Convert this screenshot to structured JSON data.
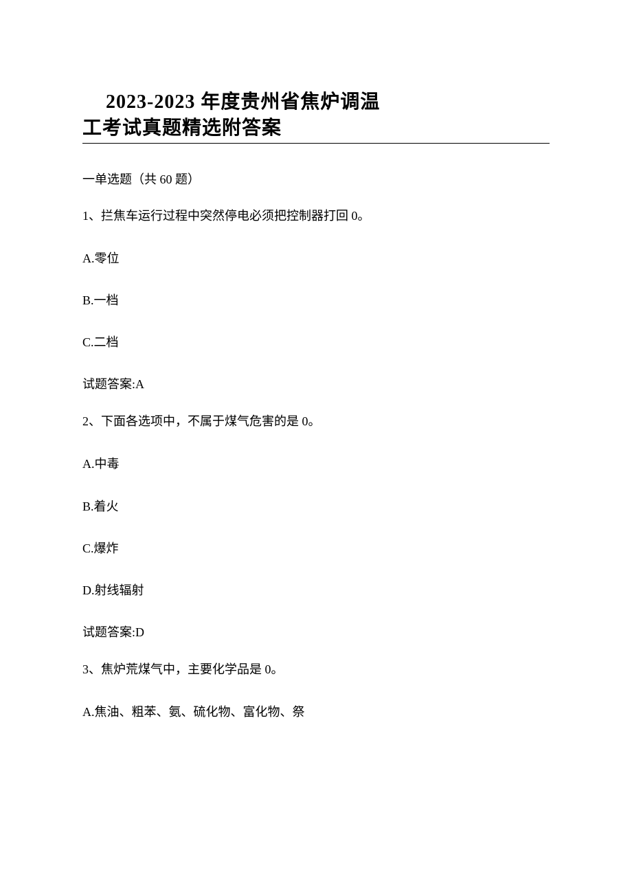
{
  "title": {
    "line1": "2023-2023 年度贵州省焦炉调温",
    "line2": "工考试真题精选附答案"
  },
  "section_header": "一单选题（共 60 题）",
  "questions": [
    {
      "stem": "1、拦焦车运行过程中突然停电必须把控制器打回 0。",
      "options": [
        "A.零位",
        "B.一档",
        "C.二档"
      ],
      "answer": "试题答案:A"
    },
    {
      "stem": "2、下面各选项中，不属于煤气危害的是 0。",
      "options": [
        "A.中毒",
        "B.着火",
        "C.爆炸",
        "D.射线辐射"
      ],
      "answer": "试题答案:D"
    },
    {
      "stem": "3、焦炉荒煤气中，主要化学品是 0。",
      "options": [
        "A.焦油、粗苯、氨、硫化物、富化物、祭"
      ],
      "answer": ""
    }
  ]
}
